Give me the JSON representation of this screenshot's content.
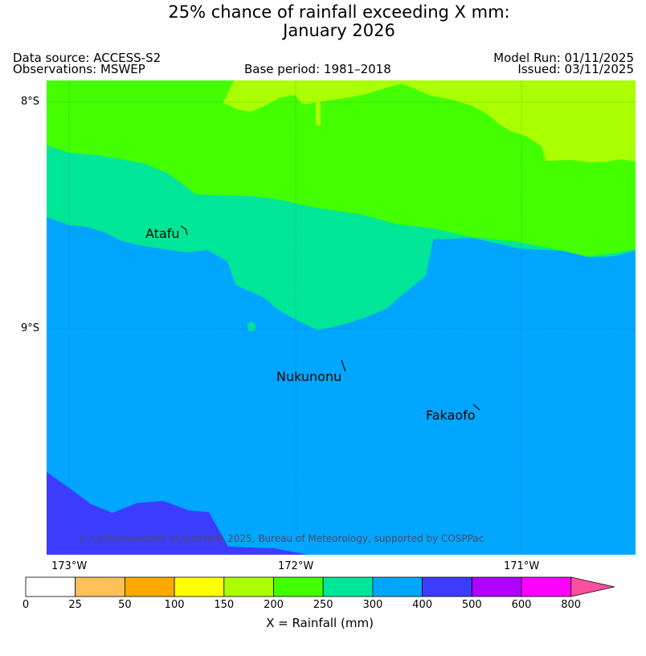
{
  "title": {
    "line1": "25% chance of rainfall exceeding X mm:",
    "line2": "January 2026"
  },
  "meta": {
    "data_source": "Data source: ACCESS-S2",
    "observations": "Observations: MSWEP",
    "base_period": "Base period: 1981–2018",
    "model_run": "Model Run: 01/11/2025",
    "issued": "Issued: 03/11/2025"
  },
  "axes": {
    "lat_labels": [
      "8°S",
      "9°S"
    ],
    "lon_labels": [
      "173°W",
      "172°W",
      "171°W"
    ]
  },
  "places": [
    {
      "name": "Atafu"
    },
    {
      "name": "Nukunonu"
    },
    {
      "name": "Fakaofo"
    }
  ],
  "copyright": "© Commonwealth of Australia 2025, Bureau of Meteorology, supported by COSPPac",
  "legend": {
    "xlabel": "X = Rainfall (mm)",
    "ticks": [
      "0",
      "25",
      "50",
      "100",
      "150",
      "200",
      "250",
      "300",
      "400",
      "500",
      "600",
      "800"
    ],
    "colors": [
      "#ffffff",
      "#ffc05a",
      "#ffaa00",
      "#ffff00",
      "#aaff00",
      "#44ff00",
      "#00e699",
      "#00a6ff",
      "#3c3cff",
      "#b000ff",
      "#ff00ff",
      "#ff4fa0"
    ]
  }
}
